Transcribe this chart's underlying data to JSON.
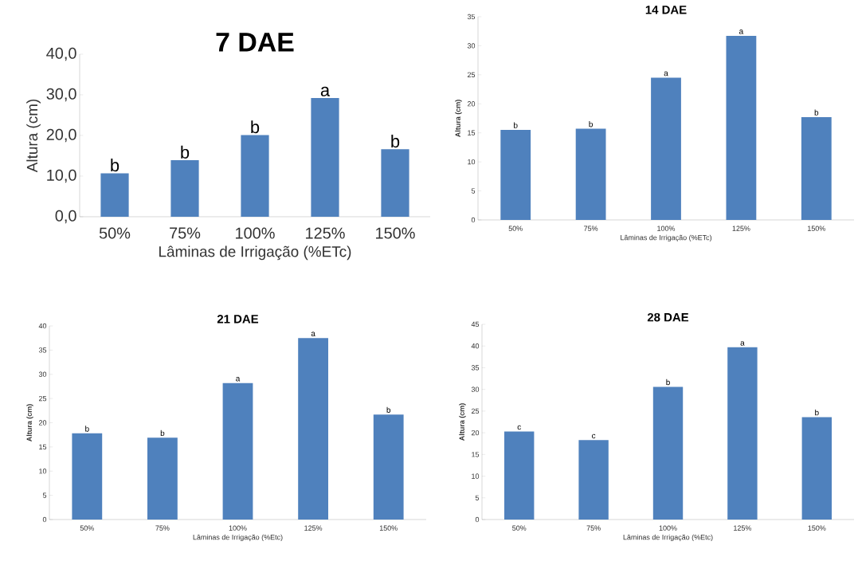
{
  "chart_data": [
    {
      "type": "bar",
      "title": "7 DAE",
      "xlabel": "Lâminas de Irrigação (%ETc)",
      "ylabel": "Altura (cm)",
      "categories": [
        "50%",
        "75%",
        "100%",
        "125%",
        "150%"
      ],
      "values": [
        10.7,
        13.9,
        20.1,
        29.2,
        16.6
      ],
      "color": "#4f81bd",
      "ylim": [
        0,
        40
      ],
      "yticks": [
        {
          "value": 0,
          "label": "0,0"
        },
        {
          "value": 10,
          "label": "10,0"
        },
        {
          "value": 20,
          "label": "20,0"
        },
        {
          "value": 30,
          "label": "30,0"
        },
        {
          "value": 40,
          "label": "40,0"
        }
      ],
      "annotations": [
        {
          "text": "b",
          "x": "50%",
          "y": 10.7
        },
        {
          "text": "b",
          "x": "75%",
          "y": 13.9
        },
        {
          "text": "b",
          "x": "100%",
          "y": 20.1
        },
        {
          "text": "a",
          "x": "125%",
          "y": 29.2
        },
        {
          "text": "b",
          "x": "150%",
          "y": 16.6
        }
      ]
    },
    {
      "type": "bar",
      "title": "14 DAE",
      "xlabel": "Lâminas de Irrigação (%ETc)",
      "ylabel": "Altura (cm)",
      "categories": [
        "50%",
        "75%",
        "100%",
        "125%",
        "150%"
      ],
      "values": [
        15.5,
        15.7,
        24.5,
        31.7,
        17.7
      ],
      "color": "#4f81bd",
      "ylim": [
        0,
        35
      ],
      "yticks": [
        0,
        5,
        10,
        15,
        20,
        25,
        30,
        35
      ],
      "annotations": [
        {
          "text": "b",
          "x": "50%",
          "y": 15.5
        },
        {
          "text": "b",
          "x": "75%",
          "y": 15.7
        },
        {
          "text": "a",
          "x": "100%",
          "y": 24.5
        },
        {
          "text": "a",
          "x": "125%",
          "y": 31.7
        },
        {
          "text": "b",
          "x": "150%",
          "y": 17.7
        }
      ]
    },
    {
      "type": "bar",
      "title": "21 DAE",
      "xlabel": "Lâminas de Irrigação (%Etc)",
      "ylabel": "Altura (cm)",
      "categories": [
        "50%",
        "75%",
        "100%",
        "125%",
        "150%"
      ],
      "values": [
        17.8,
        16.9,
        28.2,
        37.5,
        21.7
      ],
      "color": "#4f81bd",
      "ylim": [
        0,
        40
      ],
      "yticks": [
        0,
        5,
        10,
        15,
        20,
        25,
        30,
        35,
        40
      ],
      "annotations": [
        {
          "text": "b",
          "x": "50%",
          "y": 17.8
        },
        {
          "text": "b",
          "x": "75%",
          "y": 16.9
        },
        {
          "text": "a",
          "x": "100%",
          "y": 28.2
        },
        {
          "text": "a",
          "x": "125%",
          "y": 37.5
        },
        {
          "text": "b",
          "x": "150%",
          "y": 21.7
        }
      ]
    },
    {
      "type": "bar",
      "title": "28 DAE",
      "xlabel": "Lâminas de Irrigação (%Etc)",
      "ylabel": "Altura (cm)",
      "categories": [
        "50%",
        "75%",
        "100%",
        "125%",
        "150%"
      ],
      "values": [
        20.3,
        18.3,
        30.6,
        39.7,
        23.6
      ],
      "color": "#4f81bd",
      "ylim": [
        0,
        45
      ],
      "yticks": [
        0,
        5,
        10,
        15,
        20,
        25,
        30,
        35,
        40,
        45
      ],
      "annotations": [
        {
          "text": "c",
          "x": "50%",
          "y": 20.3
        },
        {
          "text": "c",
          "x": "75%",
          "y": 18.3
        },
        {
          "text": "b",
          "x": "100%",
          "y": 30.6
        },
        {
          "text": "a",
          "x": "125%",
          "y": 39.7
        },
        {
          "text": "b",
          "x": "150%",
          "y": 23.6
        }
      ]
    }
  ]
}
